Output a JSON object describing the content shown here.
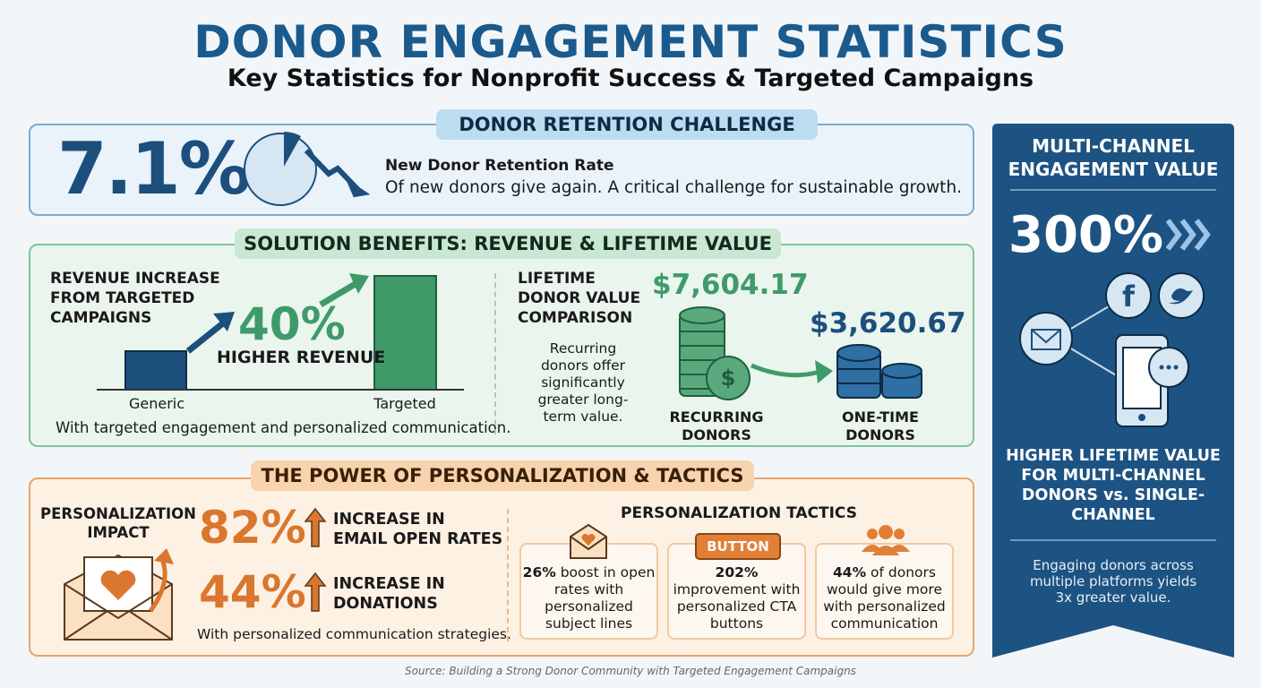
{
  "header": {
    "title": "DONOR ENGAGEMENT STATISTICS",
    "subtitle": "Key Statistics for Nonprofit Success & Targeted Campaigns"
  },
  "retention": {
    "heading": "DONOR RETENTION CHALLENGE",
    "stat": "7.1%",
    "label": "New Donor Retention Rate",
    "text": "Of new donors give again. A critical challenge for sustainable growth."
  },
  "benefits": {
    "heading": "SOLUTION BENEFITS: REVENUE & LIFETIME VALUE",
    "revenue": {
      "title": "REVENUE INCREASE FROM TARGETED CAMPAIGNS",
      "stat": "40%",
      "stat_label": "HIGHER REVENUE",
      "bar_labels": [
        "Generic",
        "Targeted"
      ],
      "note": "With targeted engagement and personalized communication."
    },
    "lifetime": {
      "title": "LIFETIME DONOR VALUE COMPARISON",
      "text": "Recurring donors offer significantly greater long-term value.",
      "groups": [
        {
          "value": "$7,604.17",
          "label": "RECURRING DONORS"
        },
        {
          "value": "$3,620.67",
          "label": "ONE-TIME DONORS"
        }
      ]
    }
  },
  "personalization": {
    "heading": "THE POWER OF PERSONALIZATION & TACTICS",
    "impact_title": "PERSONALIZATION IMPACT",
    "stats": [
      {
        "value": "82%",
        "label": "INCREASE IN EMAIL OPEN RATES"
      },
      {
        "value": "44%",
        "label": "INCREASE IN DONATIONS"
      }
    ],
    "note": "With personalized communication strategies.",
    "tactics_title": "PERSONALIZATION TACTICS",
    "tactics": [
      {
        "highlight": "26%",
        "text": "boost in open rates with personalized subject lines"
      },
      {
        "icon_label": "BUTTON",
        "highlight": "202%",
        "text": "improvement with personalized CTA buttons"
      },
      {
        "highlight": "44%",
        "text": "of donors would give more with personalized communication"
      }
    ]
  },
  "multichannel": {
    "heading": "MULTI-CHANNEL ENGAGEMENT VALUE",
    "stat": "300%",
    "label": "HIGHER LIFETIME VALUE FOR MULTI-CHANNEL DONORS vs. SINGLE-CHANNEL",
    "text": "Engaging donors across multiple platforms yields 3x greater value."
  },
  "footer": {
    "source": "Source: Building a Strong Donor Community with Targeted Engagement Campaigns"
  }
}
